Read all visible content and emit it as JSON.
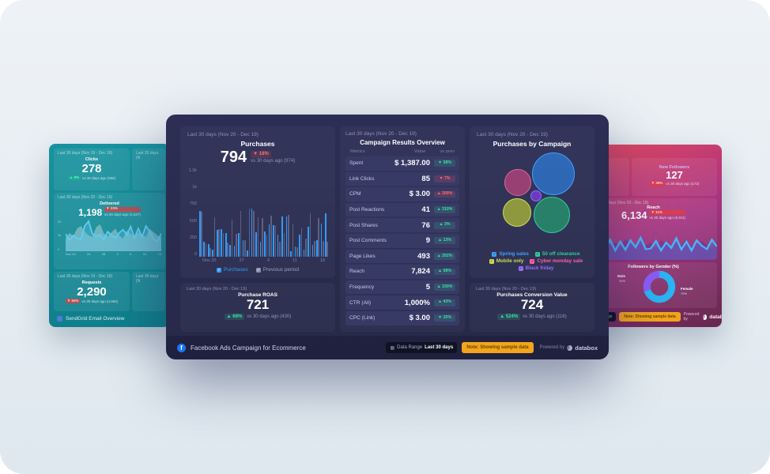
{
  "left_board": {
    "footer_title": "SendGrid Email Overview",
    "clicks": {
      "header": "Last 30 days (Nov 19 - Dec 18)",
      "label": "Clicks",
      "value": "278",
      "change": "▲ 9%",
      "tone": "green",
      "compare": "vs 30 days ago (256)"
    },
    "partial_header": "Last 30 days (N",
    "delivered": {
      "header": "Last 30 days (Nov 20 - Dec 19)",
      "label": "Delivered",
      "value": "1,198",
      "change": "▼ 23%",
      "tone": "red",
      "compare": "vs 30 days ago (1,547)"
    },
    "requests": {
      "header": "Last 30 days (Nov 19 - Dec 18)",
      "label": "Requests",
      "value": "2,290",
      "change": "▼ 54%",
      "tone": "red",
      "compare": "vs 30 days ago (4,954)"
    }
  },
  "center": {
    "purchases": {
      "header": "Last 30 days (Nov 20 - Dec 19)",
      "title": "Purchases",
      "value": "794",
      "change": "▼ 18%",
      "tone": "red",
      "compare": "vs 30 days ago (974)"
    },
    "roas": {
      "header": "Last 30 days (Nov 20 - Dec 19)",
      "title": "Purchase ROAS",
      "value": "721",
      "change": "▲ 68%",
      "tone": "green",
      "compare": "vs 30 days ago (430)"
    },
    "table": {
      "header": "Last 30 days (Nov 20 - Dec 19)",
      "title": "Campaign Results Overview",
      "columns": [
        "Metrics",
        "Value",
        "vs prev"
      ],
      "rows": [
        [
          "Spent",
          "$ 1,387.00",
          "▼ 58%",
          "green"
        ],
        [
          "Link Clicks",
          "85",
          "▼ 7%",
          "red"
        ],
        [
          "CPM",
          "$ 3.00",
          "▲ 200%",
          "red"
        ],
        [
          "Post Reactions",
          "41",
          "▲ 310%",
          "green"
        ],
        [
          "Post Shares",
          "76",
          "▲ 3%",
          "green"
        ],
        [
          "Post Comments",
          "9",
          "▲ 13%",
          "green"
        ],
        [
          "Page Likes",
          "493",
          "▲ 202%",
          "green"
        ],
        [
          "Reach",
          "7,824",
          "▲ 58%",
          "green"
        ],
        [
          "Frequency",
          "5",
          "▲ 150%",
          "green"
        ],
        [
          "CTR (All)",
          "1,000%",
          "▲ 43%",
          "green"
        ],
        [
          "CPC (Link)",
          "$ 3.00",
          "▼ 25%",
          "green"
        ]
      ]
    },
    "bubbles_panel": {
      "header": "Last 30 days (Nov 20 - Dec 19)",
      "title": "Purchases by Campaign"
    },
    "conversion": {
      "header": "Last 30 days (Nov 20 - Dec 19)",
      "title": "Purchases Conversion Value",
      "value": "724",
      "change": "▲ 524%",
      "tone": "green",
      "compare": "vs 30 days ago (116)"
    },
    "footer": {
      "title": "Facebook Ads Campaign for Ecommerce",
      "data_range_label": "Data Range",
      "data_range_value": "Last 30 days",
      "note": "Note: Showing sample data",
      "powered_by": "Powered by",
      "brand": "databox"
    }
  },
  "right_board": {
    "followers": {
      "label": "New Followers",
      "value": "127",
      "change": "▼ 26%",
      "tone": "red",
      "compare": "vs 30 days ago (172)"
    },
    "reach": {
      "header": "Last 30 days (Nov 20 - Dec 19)",
      "label": "Reach",
      "value": "6,134",
      "change": "▼ 11%",
      "tone": "red",
      "compare": "vs 30 days ago (6,911)"
    },
    "donut_title": "Followers by Gender (%)",
    "footer": {
      "data_range_label": "Data Range",
      "note": "Note: Showing sample data",
      "powered_by": "Powered by",
      "brand": "databox"
    }
  },
  "chart_data": [
    {
      "id": "purchases_bar",
      "type": "bar",
      "title": "Purchases",
      "ylim": [
        0,
        1300
      ],
      "y_ticks": [
        "1.3k",
        "1k",
        "750",
        "500",
        "250",
        "0"
      ],
      "x_ticks": [
        "Nov 20",
        "27",
        "4",
        "11",
        "18"
      ],
      "series": [
        {
          "name": "Purchases",
          "color": "#2f9bff",
          "values": [
            900,
            300,
            255,
            140,
            520,
            545,
            465,
            230,
            215,
            465,
            330,
            130,
            950,
            480,
            300,
            490,
            630,
            620,
            430,
            790,
            785,
            115,
            205,
            440,
            135,
            585,
            235,
            330,
            645,
            850
          ]
        },
        {
          "name": "Previous period",
          "color": "#8a90ad",
          "values": [
            880,
            265,
            170,
            780,
            545,
            460,
            285,
            730,
            450,
            900,
            330,
            950,
            905,
            780,
            760,
            430,
            800,
            620,
            300,
            465,
            820,
            645,
            185,
            565,
            355,
            850,
            305,
            765,
            305,
            295
          ]
        }
      ]
    },
    {
      "id": "campaign_bubbles",
      "type": "scatter",
      "title": "Purchases by Campaign",
      "legend_position": "bottom",
      "bubbles": [
        {
          "label": "Spring sales",
          "color": "#3fa1ff",
          "fill": "rgba(45,118,205,0.80)",
          "x": 97,
          "y": 31,
          "r": 27
        },
        {
          "label": "Cyber monday sale",
          "color": "#e2679c",
          "fill": "rgba(178,66,122,0.80)",
          "x": 52,
          "y": 42,
          "r": 17
        },
        {
          "label": "Black friday",
          "color": "#9a6bff",
          "fill": "rgba(116,56,205,0.90)",
          "x": 75,
          "y": 59,
          "r": 7
        },
        {
          "label": "Mobile only",
          "color": "#cddc4f",
          "fill": "rgba(166,178,58,0.80)",
          "x": 51,
          "y": 80,
          "r": 18
        },
        {
          "label": "50 off clearance",
          "color": "#2ecc9a",
          "fill": "rgba(40,148,110,0.80)",
          "x": 95,
          "y": 83,
          "r": 23
        }
      ],
      "legend": [
        {
          "label": "Spring sales",
          "color": "#3fa1ff"
        },
        {
          "label": "50 off clearance",
          "color": "#2ecc9a"
        },
        {
          "label": "Mobile only",
          "color": "#cddc4f"
        },
        {
          "label": "Cyber monday sale",
          "color": "#ff5fa2"
        },
        {
          "label": "Black friday",
          "color": "#9a6bff"
        }
      ]
    },
    {
      "id": "delivered_area",
      "type": "area",
      "y_ticks": [
        "2k",
        "1k",
        "0"
      ],
      "x_ticks": [
        "Nov 20",
        "24",
        "28",
        "2",
        "6",
        "10",
        "14"
      ],
      "series": [
        {
          "name": "Previous period",
          "values": [
            40,
            58,
            48,
            72,
            80,
            62,
            50,
            45,
            76,
            85,
            56,
            46,
            60,
            72,
            50,
            40,
            66,
            56,
            45,
            60,
            50,
            46,
            70,
            60,
            50,
            44
          ]
        },
        {
          "name": "Delivered",
          "values": [
            55,
            35,
            50,
            40,
            38,
            80,
            95,
            55,
            48,
            52,
            38,
            62,
            50,
            42,
            58,
            68,
            52,
            78,
            42,
            72,
            46,
            80,
            62,
            38,
            32,
            56
          ]
        }
      ]
    },
    {
      "id": "reach_area",
      "type": "area",
      "series": [
        {
          "name": "Previous period",
          "values": [
            42,
            52,
            36,
            62,
            46,
            56,
            40,
            66,
            52,
            40,
            60,
            46,
            56,
            36,
            62,
            52,
            40,
            56,
            46,
            66,
            40,
            52,
            60,
            46,
            36,
            56
          ]
        },
        {
          "name": "Reach",
          "values": [
            55,
            28,
            60,
            34,
            64,
            30,
            58,
            32,
            62,
            40,
            70,
            34,
            36,
            60,
            30,
            55,
            38,
            68,
            33,
            58,
            30,
            62,
            45,
            34,
            64,
            42
          ]
        }
      ]
    },
    {
      "id": "followers_donut",
      "type": "pie",
      "title": "Followers by Gender (%)",
      "slices": [
        {
          "label": "Female",
          "value": 70,
          "color": "#2bb3f3"
        },
        {
          "label": "Male",
          "value": 30,
          "color": "#8b5cf6"
        }
      ]
    }
  ]
}
